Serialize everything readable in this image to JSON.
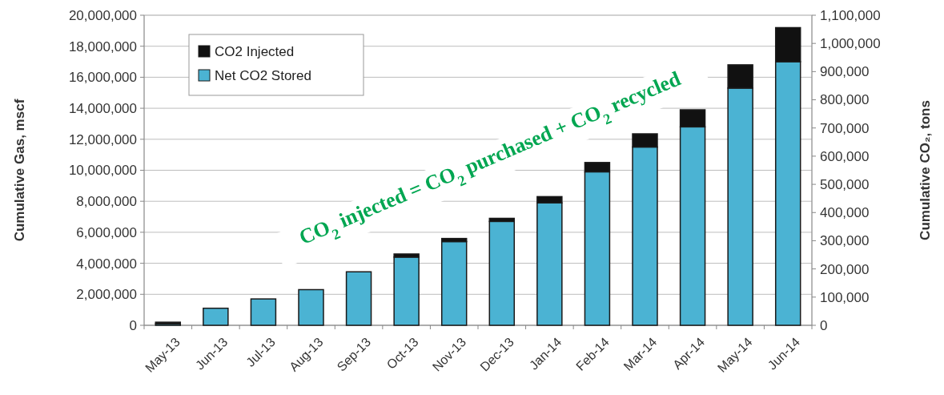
{
  "chart_data": {
    "type": "bar",
    "stacked": true,
    "ylabel": "Cumulative Gas, mscf",
    "y2label": "Cumulative CO₂, tons",
    "categories": [
      "May-13",
      "Jun-13",
      "Jul-13",
      "Aug-13",
      "Sep-13",
      "Oct-13",
      "Nov-13",
      "Dec-13",
      "Jan-14",
      "Feb-14",
      "Mar-14",
      "Apr-14",
      "May-14",
      "Jun-14"
    ],
    "series": [
      {
        "name": "Net CO2 Stored",
        "color": "#4bb3d3",
        "values": [
          100000,
          1100000,
          1700000,
          2300000,
          3450000,
          4400000,
          5400000,
          6700000,
          7900000,
          9900000,
          11500000,
          12800000,
          15300000,
          17000000
        ]
      },
      {
        "name": "CO2 Injected",
        "color": "#111111",
        "values": [
          100000,
          0,
          0,
          0,
          0,
          200000,
          200000,
          200000,
          400000,
          600000,
          850000,
          1100000,
          1500000,
          2200000
        ]
      }
    ],
    "ylim": [
      0,
      20000000
    ],
    "yticks": [
      {
        "value": 0,
        "label": "0"
      },
      {
        "value": 2000000,
        "label": "2,000,000"
      },
      {
        "value": 4000000,
        "label": "4,000,000"
      },
      {
        "value": 6000000,
        "label": "6,000,000"
      },
      {
        "value": 8000000,
        "label": "8,000,000"
      },
      {
        "value": 10000000,
        "label": "10,000,000"
      },
      {
        "value": 12000000,
        "label": "12,000,000"
      },
      {
        "value": 14000000,
        "label": "14,000,000"
      },
      {
        "value": 16000000,
        "label": "16,000,000"
      },
      {
        "value": 18000000,
        "label": "18,000,000"
      },
      {
        "value": 20000000,
        "label": "20,000,000"
      }
    ],
    "y2lim": [
      0,
      1100000
    ],
    "y2ticks": [
      {
        "value": 0,
        "label": "0"
      },
      {
        "value": 100000,
        "label": "100,000"
      },
      {
        "value": 200000,
        "label": "200,000"
      },
      {
        "value": 300000,
        "label": "300,000"
      },
      {
        "value": 400000,
        "label": "400,000"
      },
      {
        "value": 500000,
        "label": "500,000"
      },
      {
        "value": 600000,
        "label": "600,000"
      },
      {
        "value": 700000,
        "label": "700,000"
      },
      {
        "value": 800000,
        "label": "800,000"
      },
      {
        "value": 900000,
        "label": "900,000"
      },
      {
        "value": 1000000,
        "label": "1,000,000"
      },
      {
        "value": 1100000,
        "label": "1,100,000"
      }
    ],
    "grid": "y",
    "legend": "top left",
    "annotations": [
      "CO$_{2}$ injected = CO$_{2}$ purchased + CO$_{2}$ recycled"
    ]
  }
}
